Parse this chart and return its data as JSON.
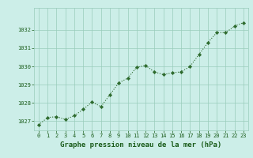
{
  "x": [
    0,
    1,
    2,
    3,
    4,
    5,
    6,
    7,
    8,
    9,
    10,
    11,
    12,
    13,
    14,
    15,
    16,
    17,
    18,
    19,
    20,
    21,
    22,
    23
  ],
  "y": [
    1026.8,
    1027.2,
    1027.25,
    1027.1,
    1027.3,
    1027.65,
    1028.05,
    1027.8,
    1028.45,
    1029.1,
    1029.35,
    1029.95,
    1030.05,
    1029.7,
    1029.55,
    1029.65,
    1029.7,
    1030.0,
    1030.65,
    1031.3,
    1031.85,
    1031.85,
    1032.2,
    1032.4
  ],
  "line_color": "#2d6a2d",
  "marker": "D",
  "marker_size": 2.2,
  "bg_color": "#cceee8",
  "grid_color": "#99ccbb",
  "xlabel": "Graphe pression niveau de la mer (hPa)",
  "xlabel_color": "#1a5c1a",
  "tick_color": "#1a5c1a",
  "ylim_min": 1026.5,
  "ylim_max": 1033.2,
  "yticks": [
    1027,
    1028,
    1029,
    1030,
    1031,
    1032
  ],
  "xticks": [
    0,
    1,
    2,
    3,
    4,
    5,
    6,
    7,
    8,
    9,
    10,
    11,
    12,
    13,
    14,
    15,
    16,
    17,
    18,
    19,
    20,
    21,
    22,
    23
  ],
  "line_width": 0.8,
  "line_style": "dotted"
}
